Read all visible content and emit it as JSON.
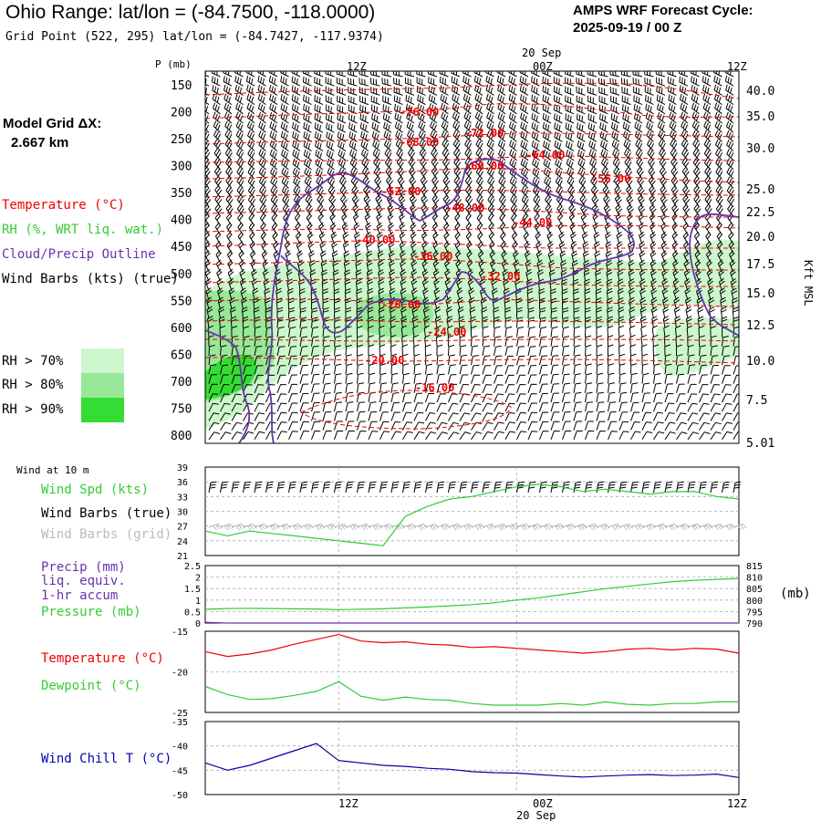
{
  "header": {
    "title": "Ohio Range:  lat/lon = (-84.7500, -118.0000)",
    "grid_point": "Grid Point (522, 295) lat/lon = (-84.7427, -117.9374)",
    "cycle_title": "AMPS WRF Forecast Cycle:",
    "cycle_value": "2025-09-19 / 00  Z"
  },
  "model_grid": {
    "label": "Model Grid ΔX:",
    "value": "2.667 km"
  },
  "legend": {
    "temperature": "Temperature (°C)",
    "rh": "RH (%, WRT liq. wat.)",
    "cloud": "Cloud/Precip Outline",
    "wind": "Wind Barbs (kts) (true)",
    "rh_levels": [
      {
        "label": "RH > 70%",
        "color": "#ccf7cc"
      },
      {
        "label": "RH > 80%",
        "color": "#99e899"
      },
      {
        "label": "RH > 90%",
        "color": "#33dd33"
      }
    ]
  },
  "time_axis": {
    "top_labels": [
      "12Z",
      "00Z",
      "12Z"
    ],
    "date_label": "20 Sep",
    "bottom_labels": [
      "12Z",
      "00Z",
      "12Z"
    ]
  },
  "colors": {
    "temperature": "#ee0000",
    "rh": "#33cc33",
    "cloud": "#6633aa",
    "wind_chill": "#0000aa",
    "grid_barbs": "#bbbbbb",
    "panel_grid": "#aaaaaa"
  },
  "panels": {
    "wind_title": "Wind at 10 m",
    "wind_spd_label": "Wind Spd (kts)",
    "wind_barbs_true": "Wind Barbs (true)",
    "wind_barbs_grid": "Wind Barbs (grid)",
    "precip_label_1": "Precip (mm)",
    "precip_label_2": "liq. equiv.",
    "precip_label_3": "1-hr accum",
    "pressure_label": "Pressure (mb)",
    "pressure_unit": "(mb)",
    "temperature_label": "Temperature (°C)",
    "dewpoint_label": "Dewpoint (°C)",
    "windchill_label": "Wind Chill T (°C)"
  },
  "chart_data": [
    {
      "type": "contour",
      "name_ref": "cross-section",
      "y_axis_label": "P (mb)",
      "pressure_levels": [
        150,
        200,
        250,
        300,
        350,
        400,
        450,
        500,
        550,
        600,
        650,
        700,
        750,
        800
      ],
      "height_axis_label": "Kft MSL",
      "height_ticks": [
        "40.0",
        "35.0",
        "30.0",
        "25.0",
        "22.5",
        "20.0",
        "17.5",
        "15.0",
        "12.5",
        "10.0",
        "7.5",
        "5.01"
      ],
      "temperature_contour_labels": [
        "-76.00",
        "-72.00",
        "-68.00",
        "-64.00",
        "-60.00",
        "-56.00",
        "-52.00",
        "-48.00",
        "-44.00",
        "-40.00",
        "-36.00",
        "-32.00",
        "-28.00",
        "-24.00",
        "-20.00",
        "-16.00"
      ]
    },
    {
      "type": "line",
      "name_ref": "wind-speed",
      "yticks": [
        21,
        24,
        27,
        30,
        33,
        36,
        39
      ],
      "ylim": [
        21,
        39
      ],
      "x_hours": [
        0,
        3,
        6,
        9,
        12,
        15,
        18,
        21,
        24,
        27,
        30,
        33,
        36,
        39,
        42,
        45,
        48,
        51,
        54,
        57,
        60,
        63,
        66,
        69,
        72
      ],
      "series": [
        {
          "name": "Wind Spd (kts)",
          "values": [
            26,
            25,
            26,
            25.5,
            25,
            24.5,
            24,
            23.5,
            23,
            29,
            31,
            32.5,
            33,
            34,
            35,
            35.5,
            35,
            34,
            34.5,
            34,
            33.5,
            34,
            34,
            33,
            32.5
          ]
        }
      ]
    },
    {
      "type": "line",
      "name_ref": "precip-pressure",
      "yticks_left": [
        0,
        0.5,
        1,
        1.5,
        2,
        2.5
      ],
      "ylim_left": [
        0,
        2.5
      ],
      "yticks_right": [
        790,
        795,
        800,
        805,
        810,
        815
      ],
      "ylim_right": [
        790,
        815
      ],
      "x_hours": [
        0,
        3,
        6,
        9,
        12,
        15,
        18,
        21,
        24,
        27,
        30,
        33,
        36,
        39,
        42,
        45,
        48,
        51,
        54,
        57,
        60,
        63,
        66,
        69,
        72
      ],
      "series": [
        {
          "name": "Pressure (mb)",
          "axis": "right",
          "values": [
            796,
            796.3,
            796.4,
            796.3,
            796.2,
            796.1,
            795.8,
            796,
            796.2,
            796.6,
            797,
            797.5,
            798,
            798.8,
            800,
            801,
            802.3,
            803.6,
            805,
            806,
            807,
            808,
            808.6,
            809,
            809.4
          ]
        },
        {
          "name": "Precip (mm)",
          "axis": "left",
          "values": [
            0.03,
            0,
            0,
            0,
            0,
            0,
            0,
            0,
            0,
            0,
            0,
            0,
            0,
            0,
            0,
            0,
            0,
            0,
            0,
            0,
            0,
            0,
            0,
            0,
            0
          ]
        }
      ]
    },
    {
      "type": "line",
      "name_ref": "temperature-dewpoint",
      "yticks": [
        -25,
        -20,
        -15
      ],
      "ylim": [
        -25,
        -15
      ],
      "x_hours": [
        0,
        3,
        6,
        9,
        12,
        15,
        18,
        21,
        24,
        27,
        30,
        33,
        36,
        39,
        42,
        45,
        48,
        51,
        54,
        57,
        60,
        63,
        66,
        69,
        72
      ],
      "series": [
        {
          "name": "Temperature (°C)",
          "values": [
            -17.5,
            -18.1,
            -17.8,
            -17.3,
            -16.6,
            -16,
            -15.4,
            -16.2,
            -16.4,
            -16.3,
            -16.6,
            -16.7,
            -17,
            -16.9,
            -17.1,
            -17.3,
            -17.5,
            -17.7,
            -17.5,
            -17.2,
            -17.1,
            -17.3,
            -17.1,
            -17.2,
            -17.7
          ]
        },
        {
          "name": "Dewpoint (°C)",
          "values": [
            -21.8,
            -22.8,
            -23.4,
            -23.3,
            -22.9,
            -22.4,
            -21.2,
            -23,
            -23.5,
            -23.1,
            -23.4,
            -23.5,
            -23.9,
            -24.1,
            -24.1,
            -24.1,
            -23.9,
            -24.1,
            -23.7,
            -24,
            -24.1,
            -23.9,
            -23.9,
            -23.7,
            -23.7
          ]
        }
      ]
    },
    {
      "type": "line",
      "name_ref": "wind-chill",
      "yticks": [
        -50,
        -45,
        -40,
        -35
      ],
      "ylim": [
        -50,
        -35
      ],
      "x_hours": [
        0,
        3,
        6,
        9,
        12,
        15,
        18,
        21,
        24,
        27,
        30,
        33,
        36,
        39,
        42,
        45,
        48,
        51,
        54,
        57,
        60,
        63,
        66,
        69,
        72
      ],
      "series": [
        {
          "name": "Wind Chill T (°C)",
          "values": [
            -43.5,
            -45,
            -44,
            -42.5,
            -41,
            -39.5,
            -43,
            -43.5,
            -44,
            -44.2,
            -44.6,
            -44.8,
            -45.3,
            -45.5,
            -45.6,
            -45.9,
            -46.2,
            -46.4,
            -46.2,
            -46.0,
            -45.9,
            -46.1,
            -46.0,
            -45.8,
            -46.5
          ]
        }
      ]
    }
  ]
}
